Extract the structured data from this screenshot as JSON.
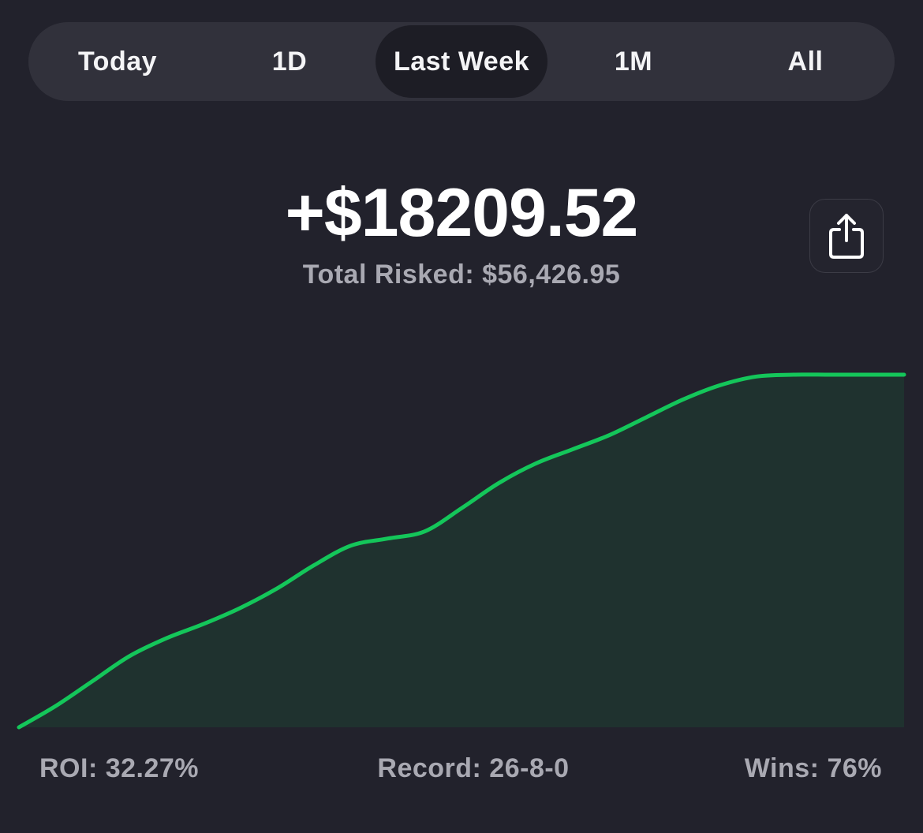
{
  "timeframe_tabs": [
    {
      "label": "Today",
      "active": false
    },
    {
      "label": "1D",
      "active": false
    },
    {
      "label": "Last Week",
      "active": true
    },
    {
      "label": "1M",
      "active": false
    },
    {
      "label": "All",
      "active": false
    }
  ],
  "summary": {
    "profit": "+$18209.52",
    "total_risked": "Total Risked: $56,426.95"
  },
  "share_button": {
    "icon": "share-icon"
  },
  "chart_data": {
    "type": "area",
    "x": [
      0,
      1,
      2,
      3,
      4,
      5,
      6,
      7,
      8,
      9,
      10,
      11,
      12,
      13,
      14,
      15,
      16,
      17,
      18,
      19,
      20,
      21,
      22,
      23,
      24
    ],
    "values": [
      0,
      1.2,
      2.6,
      4.0,
      5.0,
      5.8,
      6.7,
      7.8,
      9.1,
      10.2,
      10.6,
      11.0,
      12.3,
      13.7,
      14.8,
      15.6,
      16.4,
      17.4,
      18.4,
      19.2,
      19.7,
      19.8,
      19.8,
      19.8,
      19.8
    ],
    "line_color": "#14c65a",
    "fill_color": "#1f322f",
    "grid": false
  },
  "stats": {
    "roi": "ROI: 32.27%",
    "record": "Record: 26-8-0",
    "wins": "Wins: 76%"
  },
  "colors": {
    "background": "#22222c",
    "segment_bg": "#31313b",
    "segment_active": "#1d1d25",
    "accent": "#14c65a",
    "muted_text": "#a9a9b2"
  }
}
